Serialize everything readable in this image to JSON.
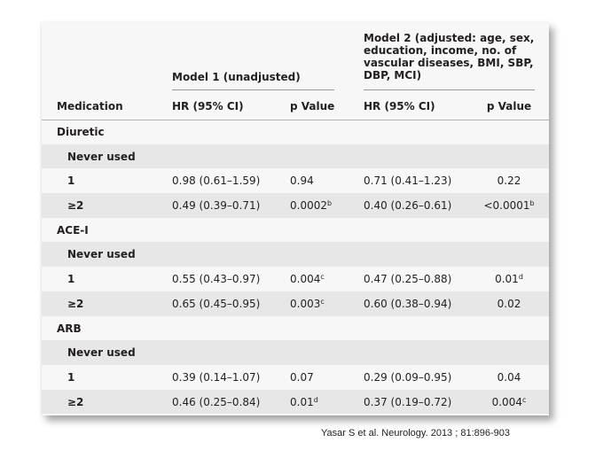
{
  "table": {
    "group_headers": {
      "model1": "Model 1 (unadjusted)",
      "model2": "Model 2 (adjusted: age, sex, education, income, no. of vascular diseases, BMI, SBP, DBP, MCI)"
    },
    "columns": [
      "Medication",
      "HR (95% CI)",
      "p Value",
      "HR (95% CI)",
      "p Value"
    ],
    "rows": [
      {
        "label": "Diuretic",
        "type": "section",
        "m1_hr": "",
        "m1_p": "",
        "m1_sup": "",
        "m2_hr": "",
        "m2_p": "",
        "m2_sup": ""
      },
      {
        "label": "Never used",
        "type": "sub",
        "m1_hr": "",
        "m1_p": "",
        "m1_sup": "",
        "m2_hr": "",
        "m2_p": "",
        "m2_sup": ""
      },
      {
        "label": "1",
        "type": "sub",
        "m1_hr": "0.98 (0.61–1.59)",
        "m1_p": "0.94",
        "m1_sup": "",
        "m2_hr": "0.71 (0.41–1.23)",
        "m2_p": "0.22",
        "m2_sup": ""
      },
      {
        "label": "≥2",
        "type": "sub",
        "m1_hr": "0.49 (0.39–0.71)",
        "m1_p": "0.0002",
        "m1_sup": "b",
        "m2_hr": "0.40 (0.26–0.61)",
        "m2_p": "<0.0001",
        "m2_sup": "b"
      },
      {
        "label": "ACE-I",
        "type": "section",
        "m1_hr": "",
        "m1_p": "",
        "m1_sup": "",
        "m2_hr": "",
        "m2_p": "",
        "m2_sup": ""
      },
      {
        "label": "Never used",
        "type": "sub",
        "m1_hr": "",
        "m1_p": "",
        "m1_sup": "",
        "m2_hr": "",
        "m2_p": "",
        "m2_sup": ""
      },
      {
        "label": "1",
        "type": "sub",
        "m1_hr": "0.55 (0.43–0.97)",
        "m1_p": "0.004",
        "m1_sup": "c",
        "m2_hr": "0.47 (0.25–0.88)",
        "m2_p": "0.01",
        "m2_sup": "d"
      },
      {
        "label": "≥2",
        "type": "sub",
        "m1_hr": "0.65 (0.45–0.95)",
        "m1_p": "0.003",
        "m1_sup": "c",
        "m2_hr": "0.60 (0.38–0.94)",
        "m2_p": "0.02",
        "m2_sup": ""
      },
      {
        "label": "ARB",
        "type": "section",
        "m1_hr": "",
        "m1_p": "",
        "m1_sup": "",
        "m2_hr": "",
        "m2_p": "",
        "m2_sup": ""
      },
      {
        "label": "Never used",
        "type": "sub",
        "m1_hr": "",
        "m1_p": "",
        "m1_sup": "",
        "m2_hr": "",
        "m2_p": "",
        "m2_sup": ""
      },
      {
        "label": "1",
        "type": "sub",
        "m1_hr": "0.39 (0.14–1.07)",
        "m1_p": "0.07",
        "m1_sup": "",
        "m2_hr": "0.29 (0.09–0.95)",
        "m2_p": "0.04",
        "m2_sup": ""
      },
      {
        "label": "≥2",
        "type": "sub",
        "m1_hr": "0.46 (0.25–0.84)",
        "m1_p": "0.01",
        "m1_sup": "d",
        "m2_hr": "0.37 (0.19–0.72)",
        "m2_p": "0.004",
        "m2_sup": "c"
      }
    ]
  },
  "citation": "Yasar S et al. Neurology. 2013 ; 81:896-903",
  "colors": {
    "page_background": "#ffffff",
    "table_background": "#f7f7f7",
    "row_shade": "#e7e7e7",
    "text": "#231f20"
  }
}
